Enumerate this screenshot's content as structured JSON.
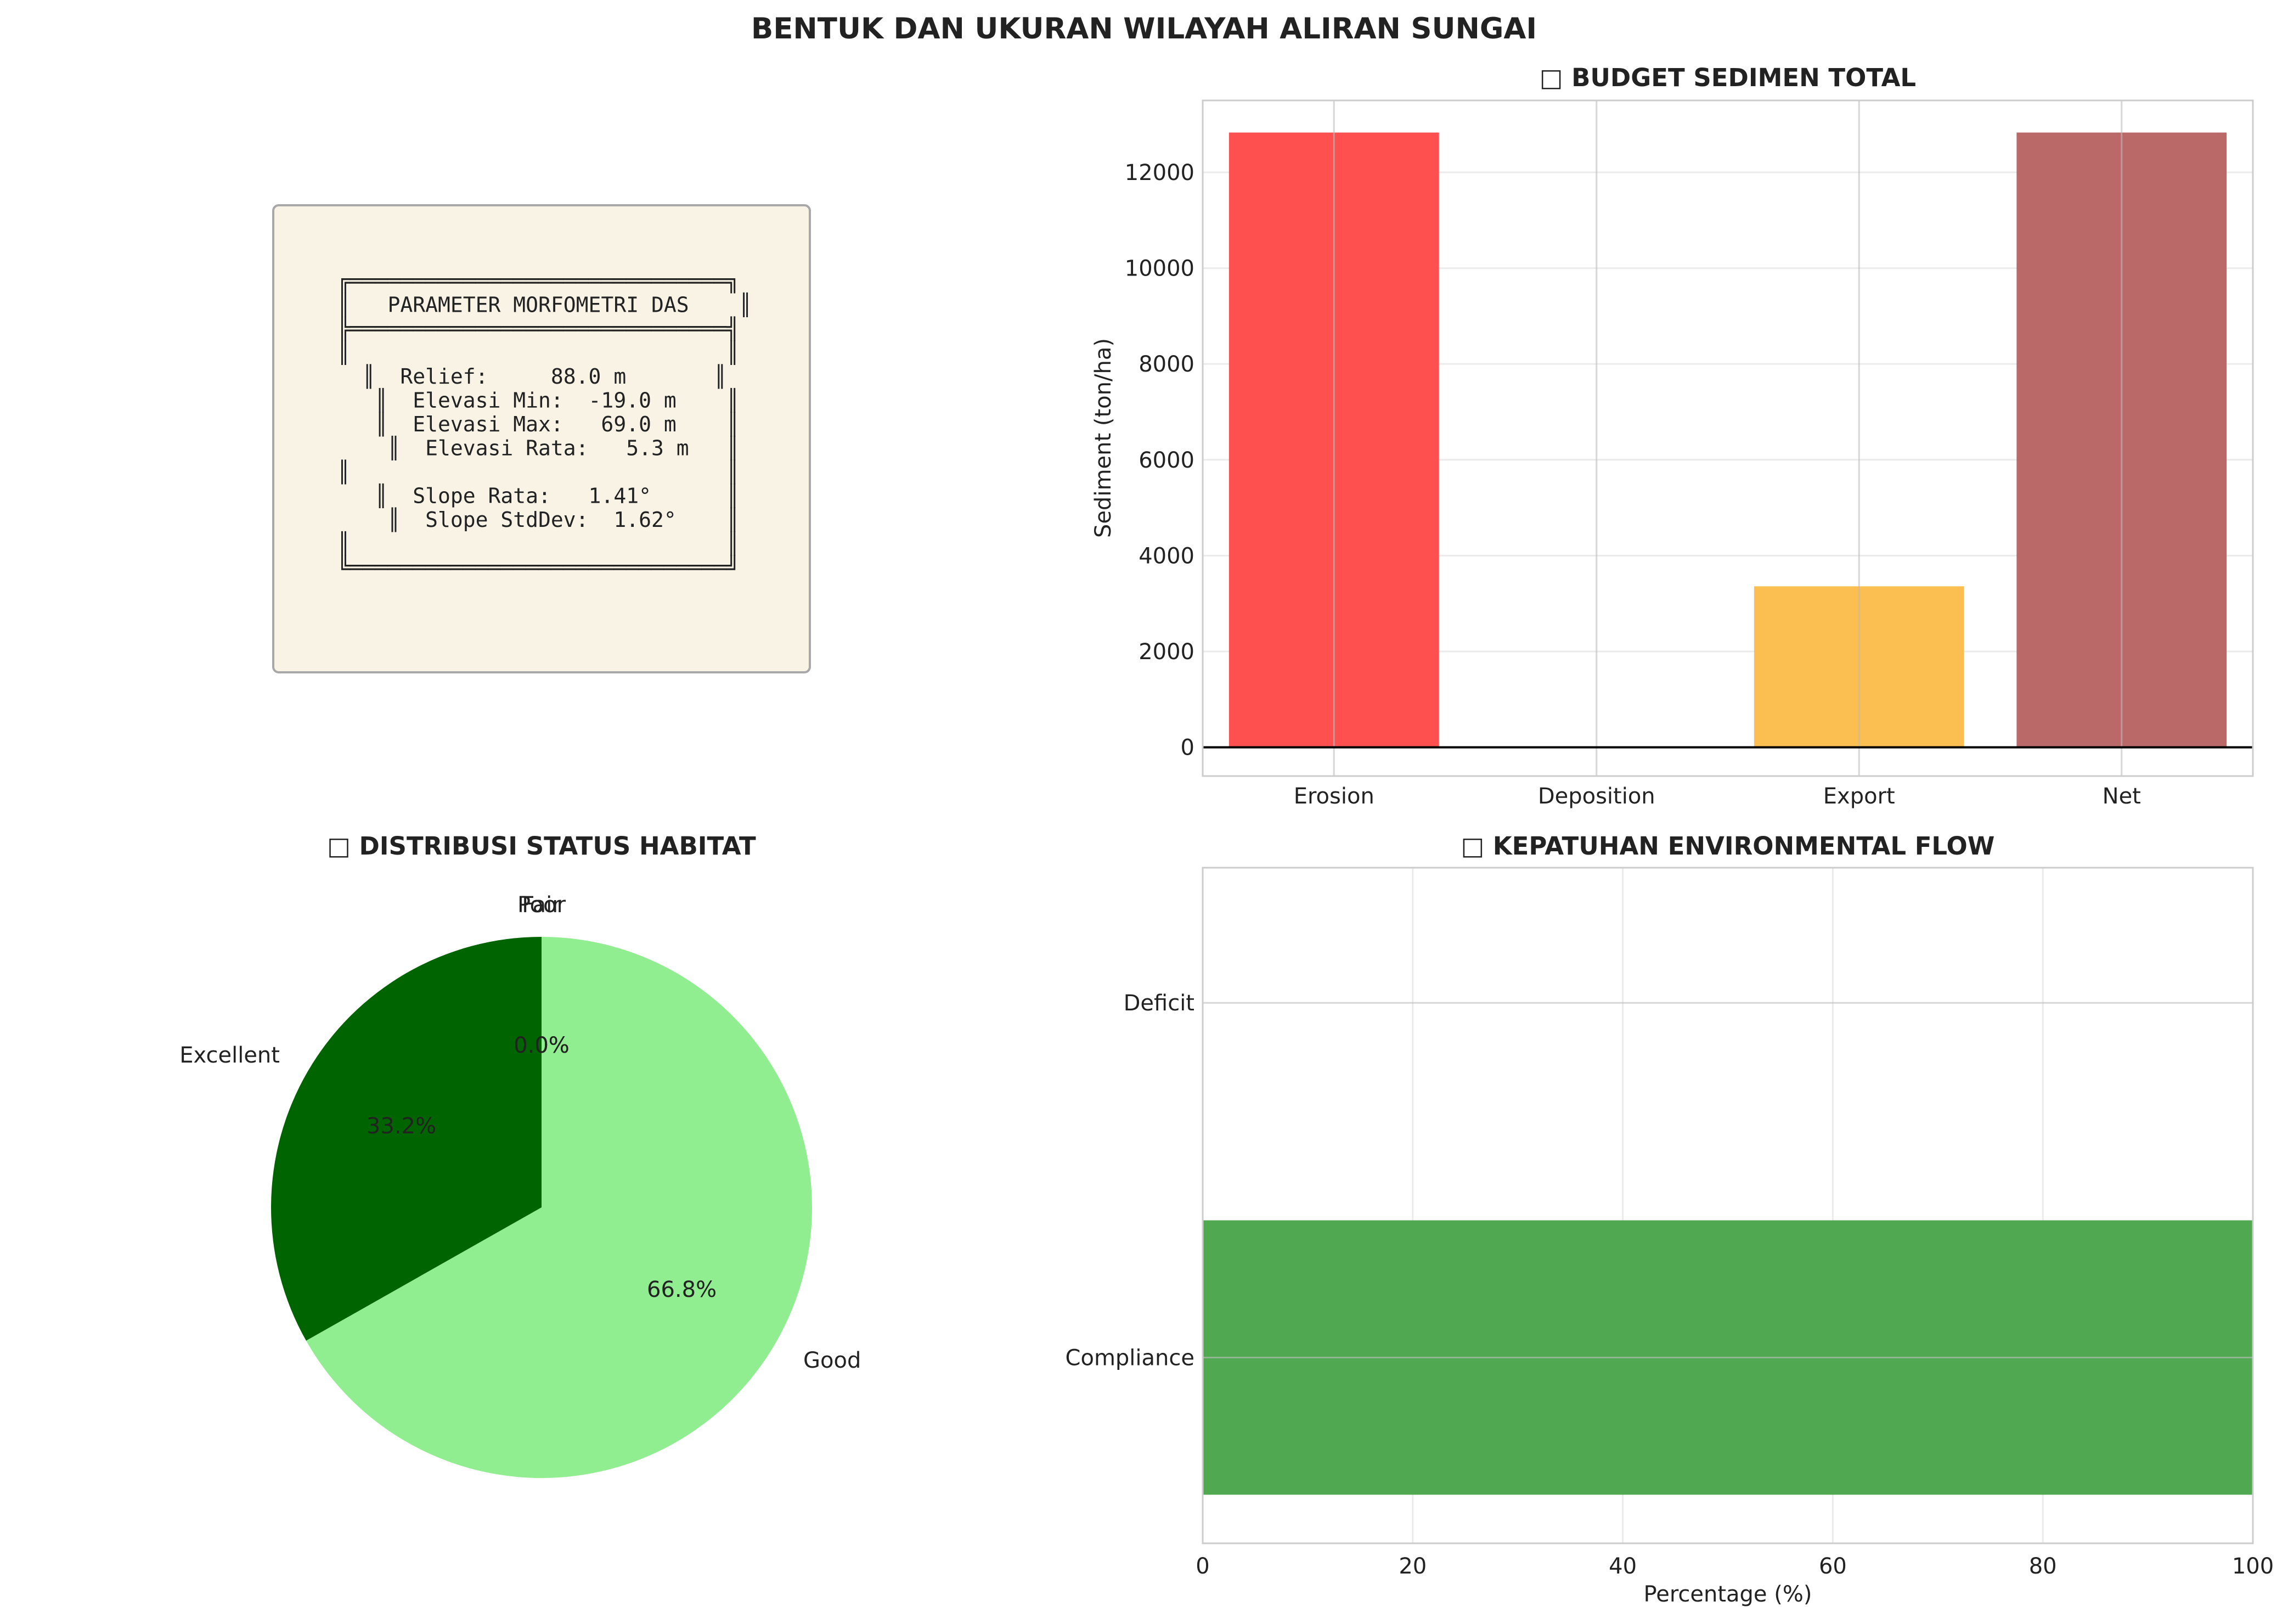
{
  "figure_title": "BENTUK DAN UKURAN WILAYAH ALIRAN SUNGAI",
  "info_box": {
    "lines": [
      "╔══════════════════════════════╗",
      "║   PARAMETER MORFOMETRI DAS    ║",
      "╠══════════════════════════════╣",
      "║                              ║",
      "  ║  Relief:     88.0 m       ║",
      "   ║  Elevasi Min:  -19.0 m    ║",
      "   ║  Elevasi Max:   69.0 m    ║",
      "    ║  Elevasi Rata:   5.3 m   ║",
      "║                              ║",
      "   ║  Slope Rata:   1.41°      ║",
      "    ║  Slope StdDev:  1.62°    ║",
      "║                              ║",
      "╚══════════════════════════════╝"
    ],
    "background": "#f9f3e6",
    "border": "#a8a8a8"
  },
  "chart_data": [
    {
      "type": "bar",
      "title": "□ BUDGET SEDIMEN TOTAL",
      "xlabel": "",
      "ylabel": "Sediment (ton/ha)",
      "categories": [
        "Erosion",
        "Deposition",
        "Export",
        "Net"
      ],
      "values": [
        12830,
        0,
        3360,
        12830
      ],
      "colors": [
        "#ff4d4d",
        "#3a4ce0",
        "#fbbd4d",
        "#b96565"
      ],
      "ylim": [
        -600,
        13500
      ],
      "yticks": [
        0,
        2000,
        4000,
        6000,
        8000,
        10000,
        12000
      ],
      "ytick_labels": [
        "0",
        "2000",
        "4000",
        "6000",
        "8000",
        "10000",
        "12000"
      ],
      "grid": true
    },
    {
      "type": "pie",
      "title": "□ DISTRIBUSI STATUS HABITAT",
      "labels": [
        "Excellent",
        "Good",
        "Fair",
        "Poor"
      ],
      "values": [
        33.2,
        66.8,
        0.0,
        0.0
      ],
      "pct_labels": [
        "33.2%",
        "66.8%",
        "0.0%",
        "0.0%"
      ],
      "colors": [
        "#006400",
        "#90ee90",
        "#ffd700",
        "#ff0000"
      ]
    },
    {
      "type": "bar",
      "orientation": "horizontal",
      "title": "□ KEPATUHAN ENVIRONMENTAL FLOW",
      "xlabel": "Percentage (%)",
      "ylabel": "",
      "categories": [
        "Compliance",
        "Deficit"
      ],
      "values": [
        100,
        0
      ],
      "colors": [
        "#4ca64c",
        "#e04c4c"
      ],
      "xlim": [
        0,
        100
      ],
      "xticks": [
        0,
        20,
        40,
        60,
        80,
        100
      ],
      "xtick_labels": [
        "0",
        "20",
        "40",
        "60",
        "80",
        "100"
      ],
      "grid": true
    }
  ]
}
